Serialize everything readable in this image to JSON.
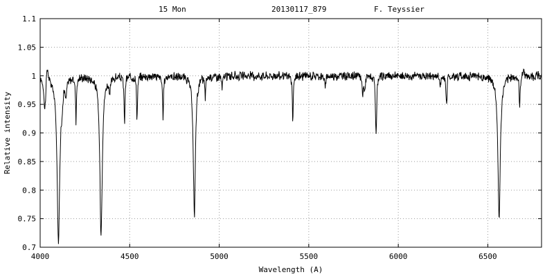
{
  "header": {
    "object": "15 Mon",
    "observation": "20130117_879",
    "observer": "F. Teyssier"
  },
  "chart_data": {
    "type": "line",
    "xlabel": "Wavelength (A)",
    "ylabel": "Relative intensity",
    "xlim": [
      4000,
      6800
    ],
    "ylim": [
      0.7,
      1.1
    ],
    "x_ticks": [
      4000,
      4500,
      5000,
      5500,
      6000,
      6500
    ],
    "y_ticks": [
      0.7,
      0.75,
      0.8,
      0.85,
      0.9,
      0.95,
      1,
      1.05,
      1.1
    ],
    "grid": true,
    "continuum": 1.0,
    "absorption_lines": [
      {
        "x": 4026,
        "depth": 0.055,
        "width": 6
      },
      {
        "x": 4102,
        "depth": 0.285,
        "width": 9
      },
      {
        "x": 4121,
        "depth": 0.03,
        "width": 4
      },
      {
        "x": 4144,
        "depth": 0.03,
        "width": 4
      },
      {
        "x": 4200,
        "depth": 0.075,
        "width": 3
      },
      {
        "x": 4340,
        "depth": 0.278,
        "width": 8
      },
      {
        "x": 4388,
        "depth": 0.03,
        "width": 4
      },
      {
        "x": 4471,
        "depth": 0.085,
        "width": 3
      },
      {
        "x": 4541,
        "depth": 0.075,
        "width": 3
      },
      {
        "x": 4686,
        "depth": 0.08,
        "width": 3
      },
      {
        "x": 4861,
        "depth": 0.248,
        "width": 7
      },
      {
        "x": 4922,
        "depth": 0.035,
        "width": 3
      },
      {
        "x": 5016,
        "depth": 0.025,
        "width": 3
      },
      {
        "x": 5411,
        "depth": 0.085,
        "width": 3
      },
      {
        "x": 5592,
        "depth": 0.025,
        "width": 3
      },
      {
        "x": 5801,
        "depth": 0.035,
        "width": 3
      },
      {
        "x": 5812,
        "depth": 0.03,
        "width": 3
      },
      {
        "x": 5876,
        "depth": 0.105,
        "width": 4
      },
      {
        "x": 6234,
        "depth": 0.02,
        "width": 3
      },
      {
        "x": 6270,
        "depth": 0.055,
        "width": 4
      },
      {
        "x": 6563,
        "depth": 0.25,
        "width": 8
      },
      {
        "x": 6678,
        "depth": 0.055,
        "width": 3
      }
    ],
    "emission_features": [
      {
        "x": 4040,
        "height": 0.025,
        "width": 8
      },
      {
        "x": 6278,
        "height": 0.015,
        "width": 6
      },
      {
        "x": 6700,
        "height": 0.012,
        "width": 8
      }
    ],
    "noise_amplitude": 0.006
  }
}
